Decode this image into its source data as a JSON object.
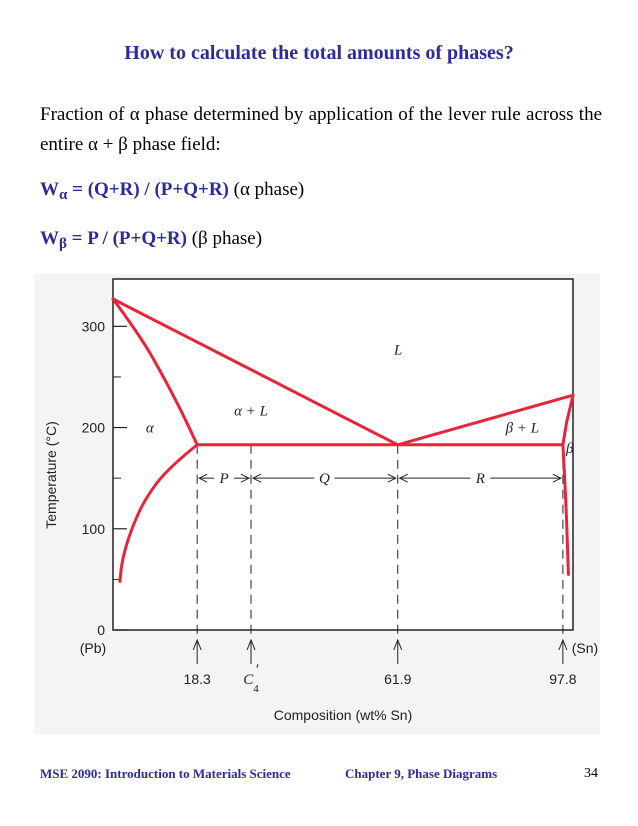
{
  "title": "How to calculate the total amounts of phases?",
  "paragraph": "Fraction of α phase determined by application of the lever rule across the entire α + β phase field:",
  "formula1": {
    "w": "W",
    "sub": "α",
    "expr": " = (Q+R) / (P+Q+R)",
    "note": "(α phase)"
  },
  "formula2": {
    "w": "W",
    "sub": "β",
    "expr": " = P / (P+Q+R)",
    "note": "(β phase)"
  },
  "chart_data": {
    "type": "line",
    "xlabel": "Composition (wt% Sn)",
    "ylabel": "Temperature (°C)",
    "xlim": [
      0,
      100
    ],
    "ylim": [
      0,
      327
    ],
    "yticks": [
      "0",
      "100",
      "200",
      "300"
    ],
    "x_end_labels": [
      "(Pb)",
      "(Sn)"
    ],
    "x_markers": [
      {
        "label": "18.3",
        "x": 18.3
      },
      {
        "label": "C",
        "prime_sub": "4",
        "x": 30
      },
      {
        "label": "61.9",
        "x": 61.9
      },
      {
        "label": "97.8",
        "x": 97.8
      }
    ],
    "eutectic_temperature": 183,
    "region_labels": {
      "liquid": "L",
      "alpha_liquid": "α + L",
      "alpha": "α",
      "beta_liquid": "β + L",
      "beta": "β"
    },
    "lever_segments": [
      {
        "label": "P"
      },
      {
        "label": "Q"
      },
      {
        "label": "R"
      }
    ],
    "series": [
      {
        "points": [
          [
            0,
            327
          ],
          [
            61.9,
            183
          ],
          [
            100,
            232
          ]
        ]
      },
      {
        "points": [
          [
            0,
            327
          ],
          [
            6,
            290
          ],
          [
            11,
            250
          ],
          [
            15,
            215
          ],
          [
            18.3,
            183
          ]
        ]
      },
      {
        "points": [
          [
            18.3,
            183
          ],
          [
            12,
            160
          ],
          [
            7,
            130
          ],
          [
            4,
            100
          ],
          [
            2,
            70
          ],
          [
            1.5,
            48
          ]
        ]
      },
      {
        "points": [
          [
            18.3,
            183
          ],
          [
            97.8,
            183
          ]
        ]
      },
      {
        "points": [
          [
            100,
            232
          ],
          [
            98.6,
            205
          ],
          [
            97.8,
            183
          ]
        ]
      },
      {
        "points": [
          [
            97.8,
            183
          ],
          [
            98.2,
            150
          ],
          [
            98.6,
            110
          ],
          [
            99.0,
            55
          ]
        ]
      }
    ],
    "line_color": "#e8243a"
  },
  "footer": {
    "course": "MSE 2090: Introduction to Materials Science",
    "chapter": "Chapter 9, Phase Diagrams",
    "page": "34"
  }
}
